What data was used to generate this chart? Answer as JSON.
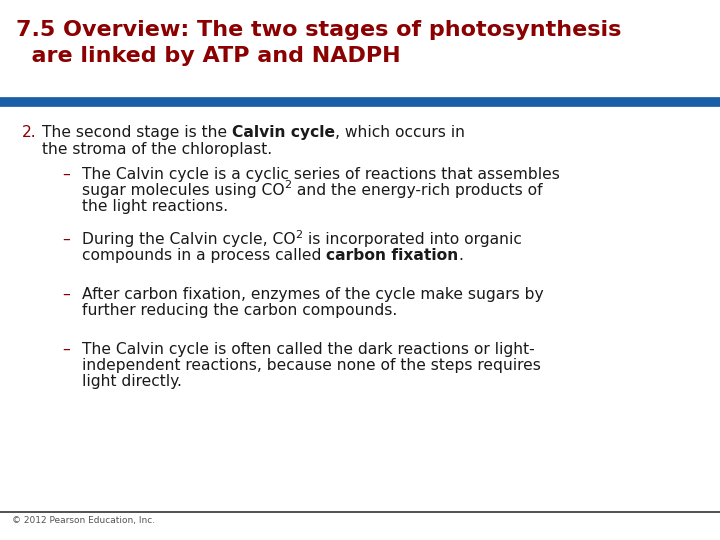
{
  "title_line1": "7.5 Overview: The two stages of photosynthesis",
  "title_line2": "  are linked by ATP and NADPH",
  "title_color": "#8B0000",
  "divider_color": "#1B5EA8",
  "background_color": "#FFFFFF",
  "footer_text": "© 2012 Pearson Education, Inc.",
  "bullet_dash_color": "#8B0000",
  "text_color": "#1a1a1a"
}
